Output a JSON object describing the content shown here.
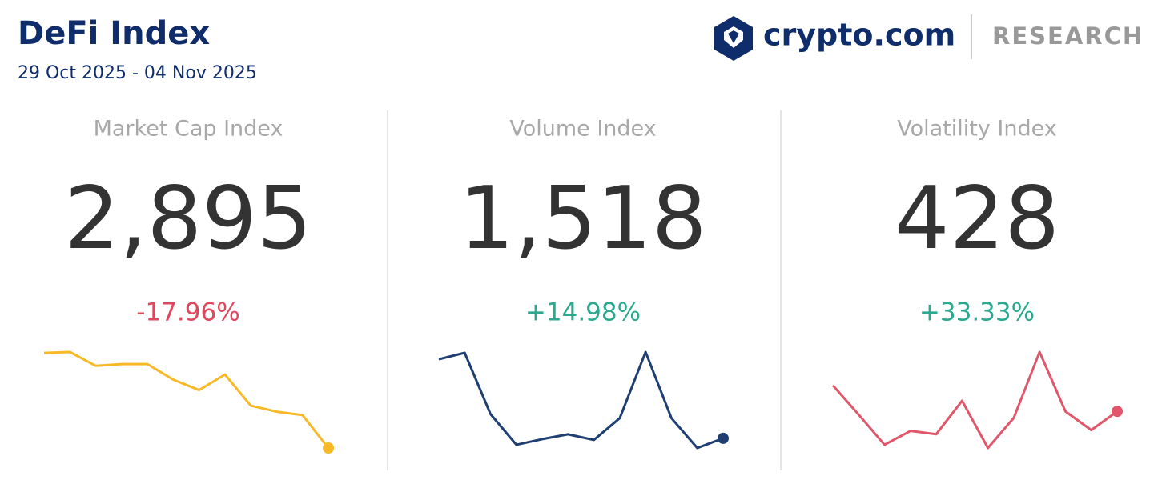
{
  "header": {
    "title": "DeFi Index",
    "date_range": "29 Oct 2025 - 04 Nov 2025",
    "brand": "crypto.com",
    "section": "RESEARCH"
  },
  "panels": [
    {
      "title": "Market Cap Index",
      "value": "2,895",
      "change": "-17.96%",
      "change_color": "#e0475c",
      "chart_data": {
        "type": "line",
        "color": "#f7b928",
        "values": [
          118,
          119,
          103,
          105,
          105,
          87,
          75,
          93,
          57,
          50,
          46,
          8
        ]
      }
    },
    {
      "title": "Volume Index",
      "value": "1,518",
      "change": "+14.98%",
      "change_color": "#2ba88e",
      "chart_data": {
        "type": "line",
        "color": "#1f3f73",
        "values": [
          110,
          118,
          42,
          4,
          11,
          17,
          10,
          37,
          119,
          37,
          0,
          12
        ]
      }
    },
    {
      "title": "Volatility Index",
      "value": "428",
      "change": "+33.33%",
      "change_color": "#2ba88e",
      "chart_data": {
        "type": "line",
        "color": "#e0566a",
        "values": [
          78,
          42,
          5,
          22,
          18,
          59,
          1,
          38,
          119,
          46,
          23,
          46
        ]
      }
    }
  ]
}
